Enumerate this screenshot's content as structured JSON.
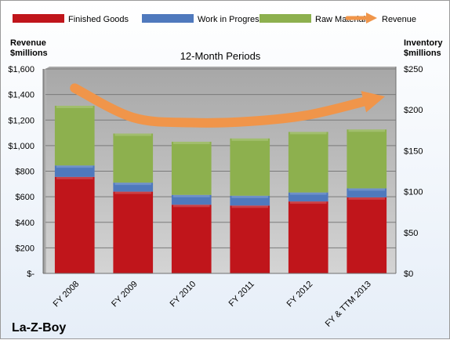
{
  "chart_data": {
    "type": "bar",
    "stacked": true,
    "title": "12-Month Periods",
    "company": "La-Z-Boy",
    "categories": [
      "FY 2008",
      "FY 2009",
      "FY 2010",
      "FY 2011",
      "FY 2012",
      "FY & TTM 2013"
    ],
    "series": [
      {
        "name": "Finished Goods",
        "axis": "right",
        "color": "#c0151b",
        "values": [
          118,
          100,
          84,
          83,
          88,
          93
        ]
      },
      {
        "name": "Work in Progress",
        "axis": "right",
        "color": "#4f79bd",
        "values": [
          14,
          11,
          12,
          12,
          11,
          11
        ]
      },
      {
        "name": "Raw Materials",
        "axis": "right",
        "color": "#8db04e",
        "values": [
          73,
          60,
          65,
          70,
          74,
          72
        ]
      }
    ],
    "line": {
      "name": "Revenue",
      "axis": "left",
      "color": "#f0954a",
      "values": [
        1450,
        1220,
        1180,
        1190,
        1240,
        1350
      ]
    },
    "left_axis": {
      "label_line1": "Revenue",
      "label_line2": "$millions",
      "ylim": [
        0,
        1600
      ],
      "ticks": [
        "$-",
        "$200",
        "$400",
        "$600",
        "$800",
        "$1,000",
        "$1,200",
        "$1,400",
        "$1,600"
      ]
    },
    "right_axis": {
      "label_line1": "Inventory",
      "label_line2": "$millions",
      "ylim": [
        0,
        250
      ],
      "ticks": [
        "$0",
        "$50",
        "$100",
        "$150",
        "$200",
        "$250"
      ]
    },
    "legend": {
      "position": "top",
      "items": [
        "Finished Goods",
        "Work in Progress",
        "Raw Materials",
        "Revenue"
      ]
    },
    "plot_background": "#bfbfbf",
    "grid": true
  }
}
